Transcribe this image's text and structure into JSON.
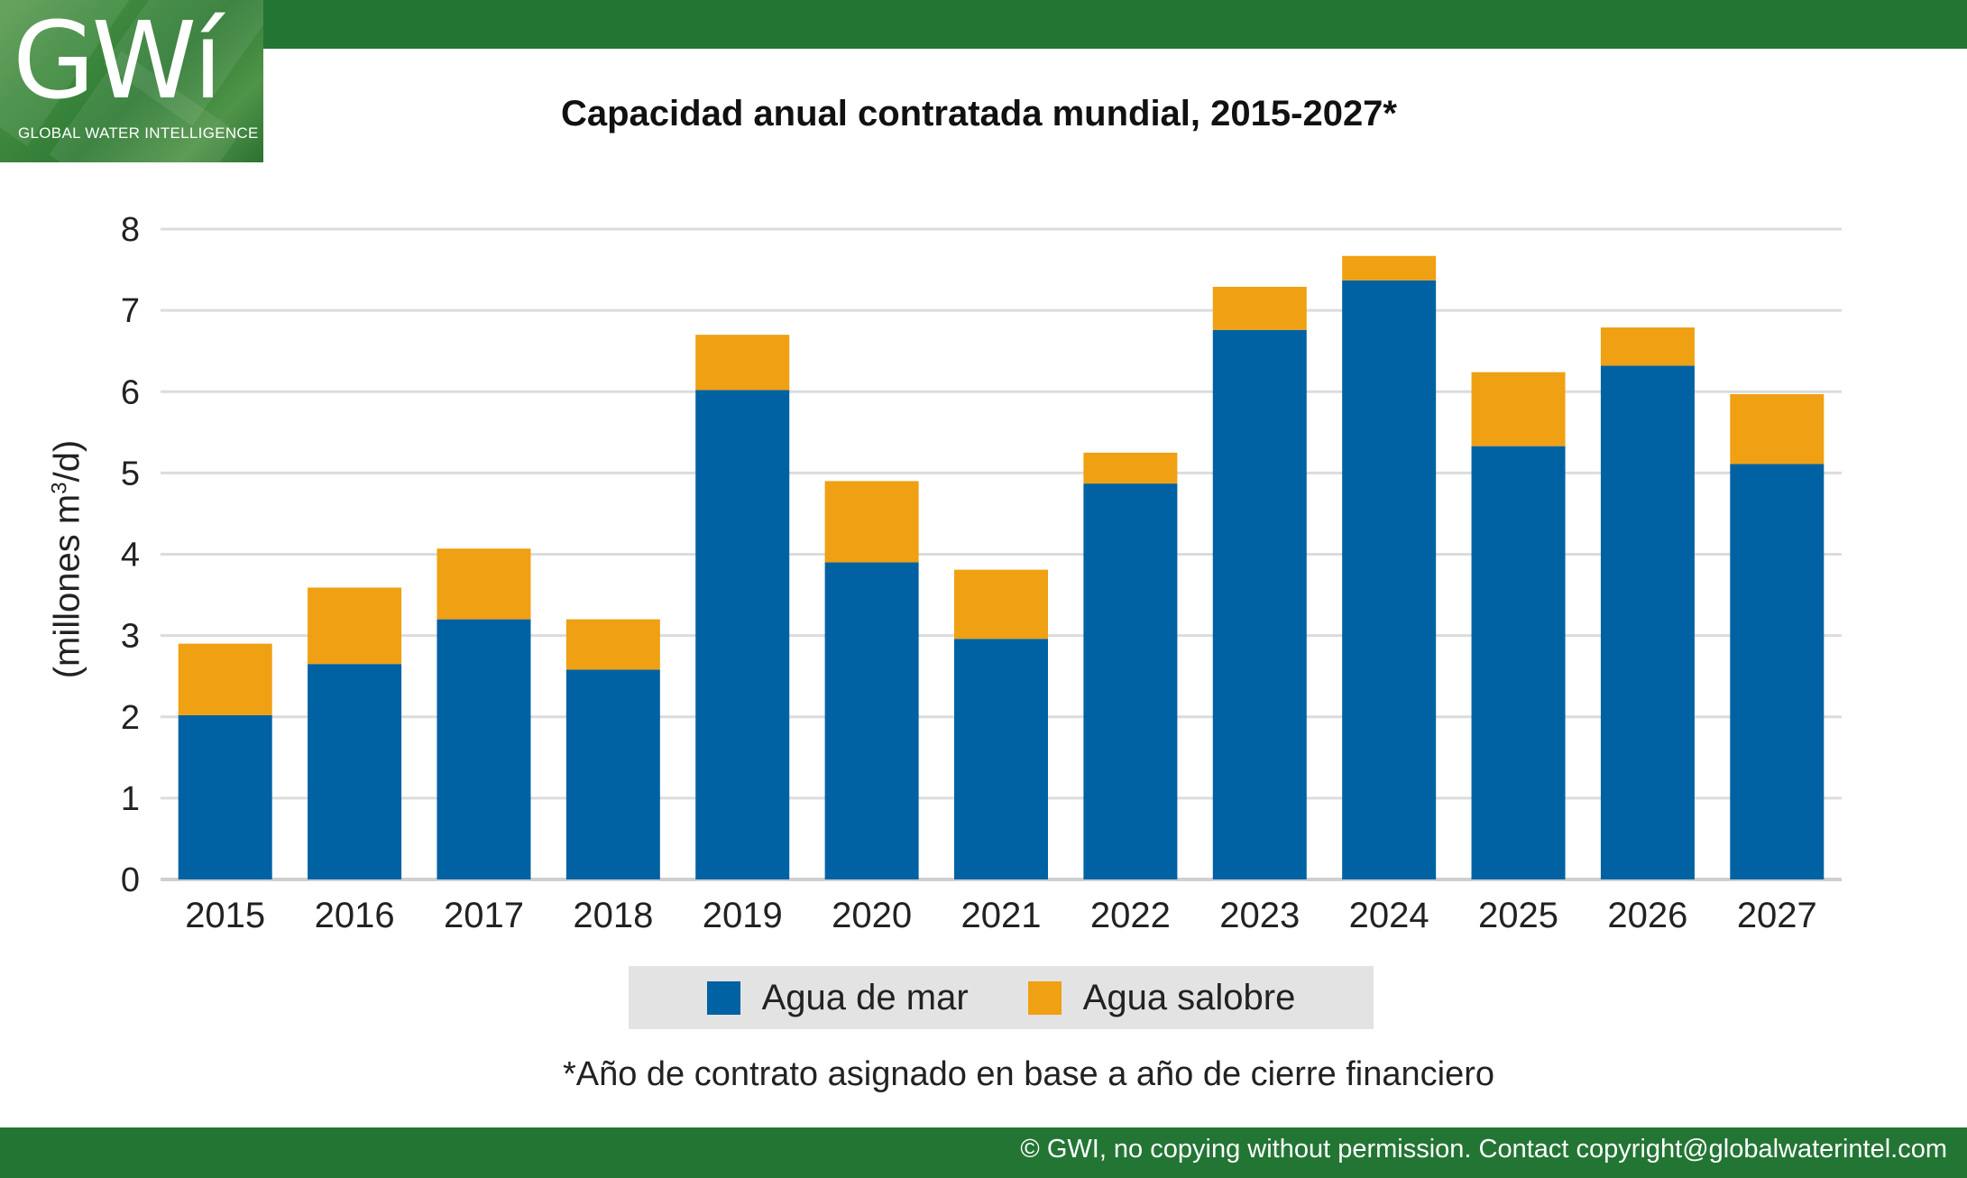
{
  "header": {
    "logo_text": "GWí",
    "logo_tagline": "GLOBAL WATER INTELLIGENCE"
  },
  "chart_data": {
    "type": "bar",
    "stacked": true,
    "title": "Capacidad anual contratada mundial, 2015-2027*",
    "xlabel": "",
    "ylabel": "(millones m3/d)",
    "ylabel_prefix": "(millones m",
    "ylabel_sup": "3",
    "ylabel_suffix": "/d)",
    "ylim": [
      0,
      8
    ],
    "yticks": [
      "0",
      "1",
      "2",
      "3",
      "4",
      "5",
      "6",
      "7",
      "8"
    ],
    "grid": true,
    "categories": [
      "2015",
      "2016",
      "2017",
      "2018",
      "2019",
      "2020",
      "2021",
      "2022",
      "2023",
      "2024",
      "2025",
      "2026",
      "2027"
    ],
    "series": [
      {
        "name": "Agua de mar",
        "color": "#0062a3",
        "values": [
          2.02,
          2.65,
          3.2,
          2.58,
          6.02,
          3.9,
          2.96,
          4.87,
          6.76,
          7.37,
          5.33,
          6.32,
          5.11
        ]
      },
      {
        "name": "Agua salobre",
        "color": "#f0a013",
        "values": [
          0.88,
          0.94,
          0.87,
          0.62,
          0.68,
          1.0,
          0.85,
          0.38,
          0.53,
          0.3,
          0.91,
          0.47,
          0.86
        ]
      }
    ],
    "legend_position": "bottom-center"
  },
  "footnote": "*Año de contrato asignado en base a año de cierre financiero",
  "copyright": "© GWI, no copying without permission. Contact copyright@globalwaterintel.com"
}
